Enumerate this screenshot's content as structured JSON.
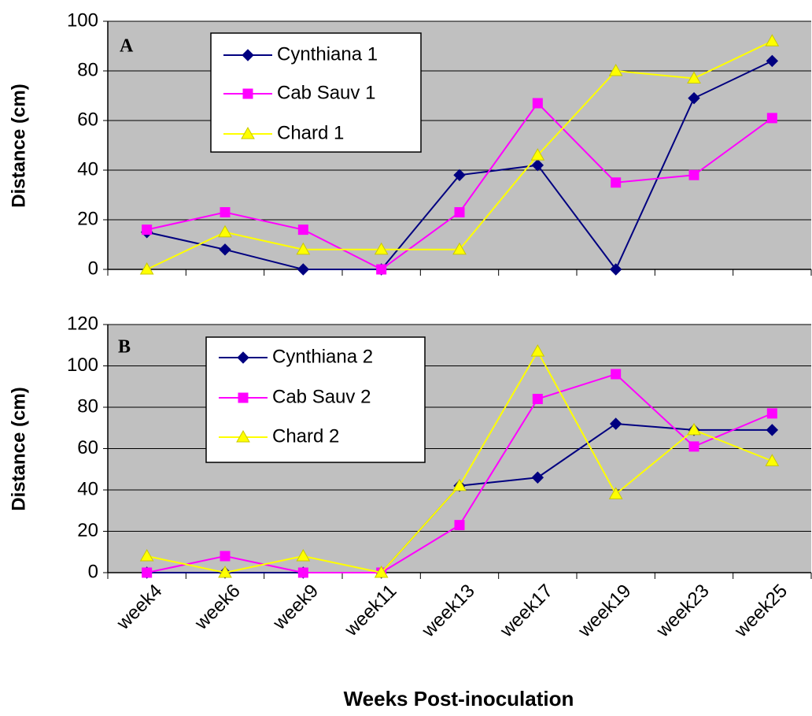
{
  "chart_data": [
    {
      "type": "line",
      "label": "A",
      "y_label": "Distance (cm)",
      "ylim": [
        0,
        100
      ],
      "yticks": [
        0,
        20,
        40,
        60,
        80,
        100
      ],
      "grid": true,
      "series": [
        {
          "name": "Cynthiana 1",
          "color": "#000080",
          "marker": "diamond",
          "values": [
            15,
            8,
            0,
            0,
            38,
            42,
            0,
            69,
            84
          ]
        },
        {
          "name": "Cab Sauv 1",
          "color": "#FF00FF",
          "marker": "square",
          "values": [
            16,
            23,
            16,
            0,
            23,
            67,
            35,
            38,
            61
          ]
        },
        {
          "name": "Chard 1",
          "color": "#FFFF00",
          "marker": "triangle",
          "values": [
            0,
            15,
            8,
            8,
            8,
            46,
            80,
            77,
            92
          ]
        }
      ]
    },
    {
      "type": "line",
      "label": "B",
      "y_label": "Distance (cm)",
      "x_label": "Weeks Post-inoculation",
      "categories": [
        "week4",
        "week6",
        "week9",
        "week11",
        "week13",
        "week17",
        "week19",
        "week23",
        "week25"
      ],
      "ylim": [
        0,
        120
      ],
      "yticks": [
        0,
        20,
        40,
        60,
        80,
        100,
        120
      ],
      "grid": true,
      "series": [
        {
          "name": "Cynthiana 2",
          "color": "#000080",
          "marker": "diamond",
          "values": [
            0,
            0,
            0,
            0,
            42,
            46,
            72,
            69,
            69
          ]
        },
        {
          "name": "Cab Sauv 2",
          "color": "#FF00FF",
          "marker": "square",
          "values": [
            0,
            8,
            0,
            0,
            23,
            84,
            96,
            61,
            77
          ]
        },
        {
          "name": "Chard 2",
          "color": "#FFFF00",
          "marker": "triangle",
          "values": [
            8,
            0,
            8,
            0,
            42,
            107,
            38,
            69,
            54
          ]
        }
      ]
    }
  ]
}
